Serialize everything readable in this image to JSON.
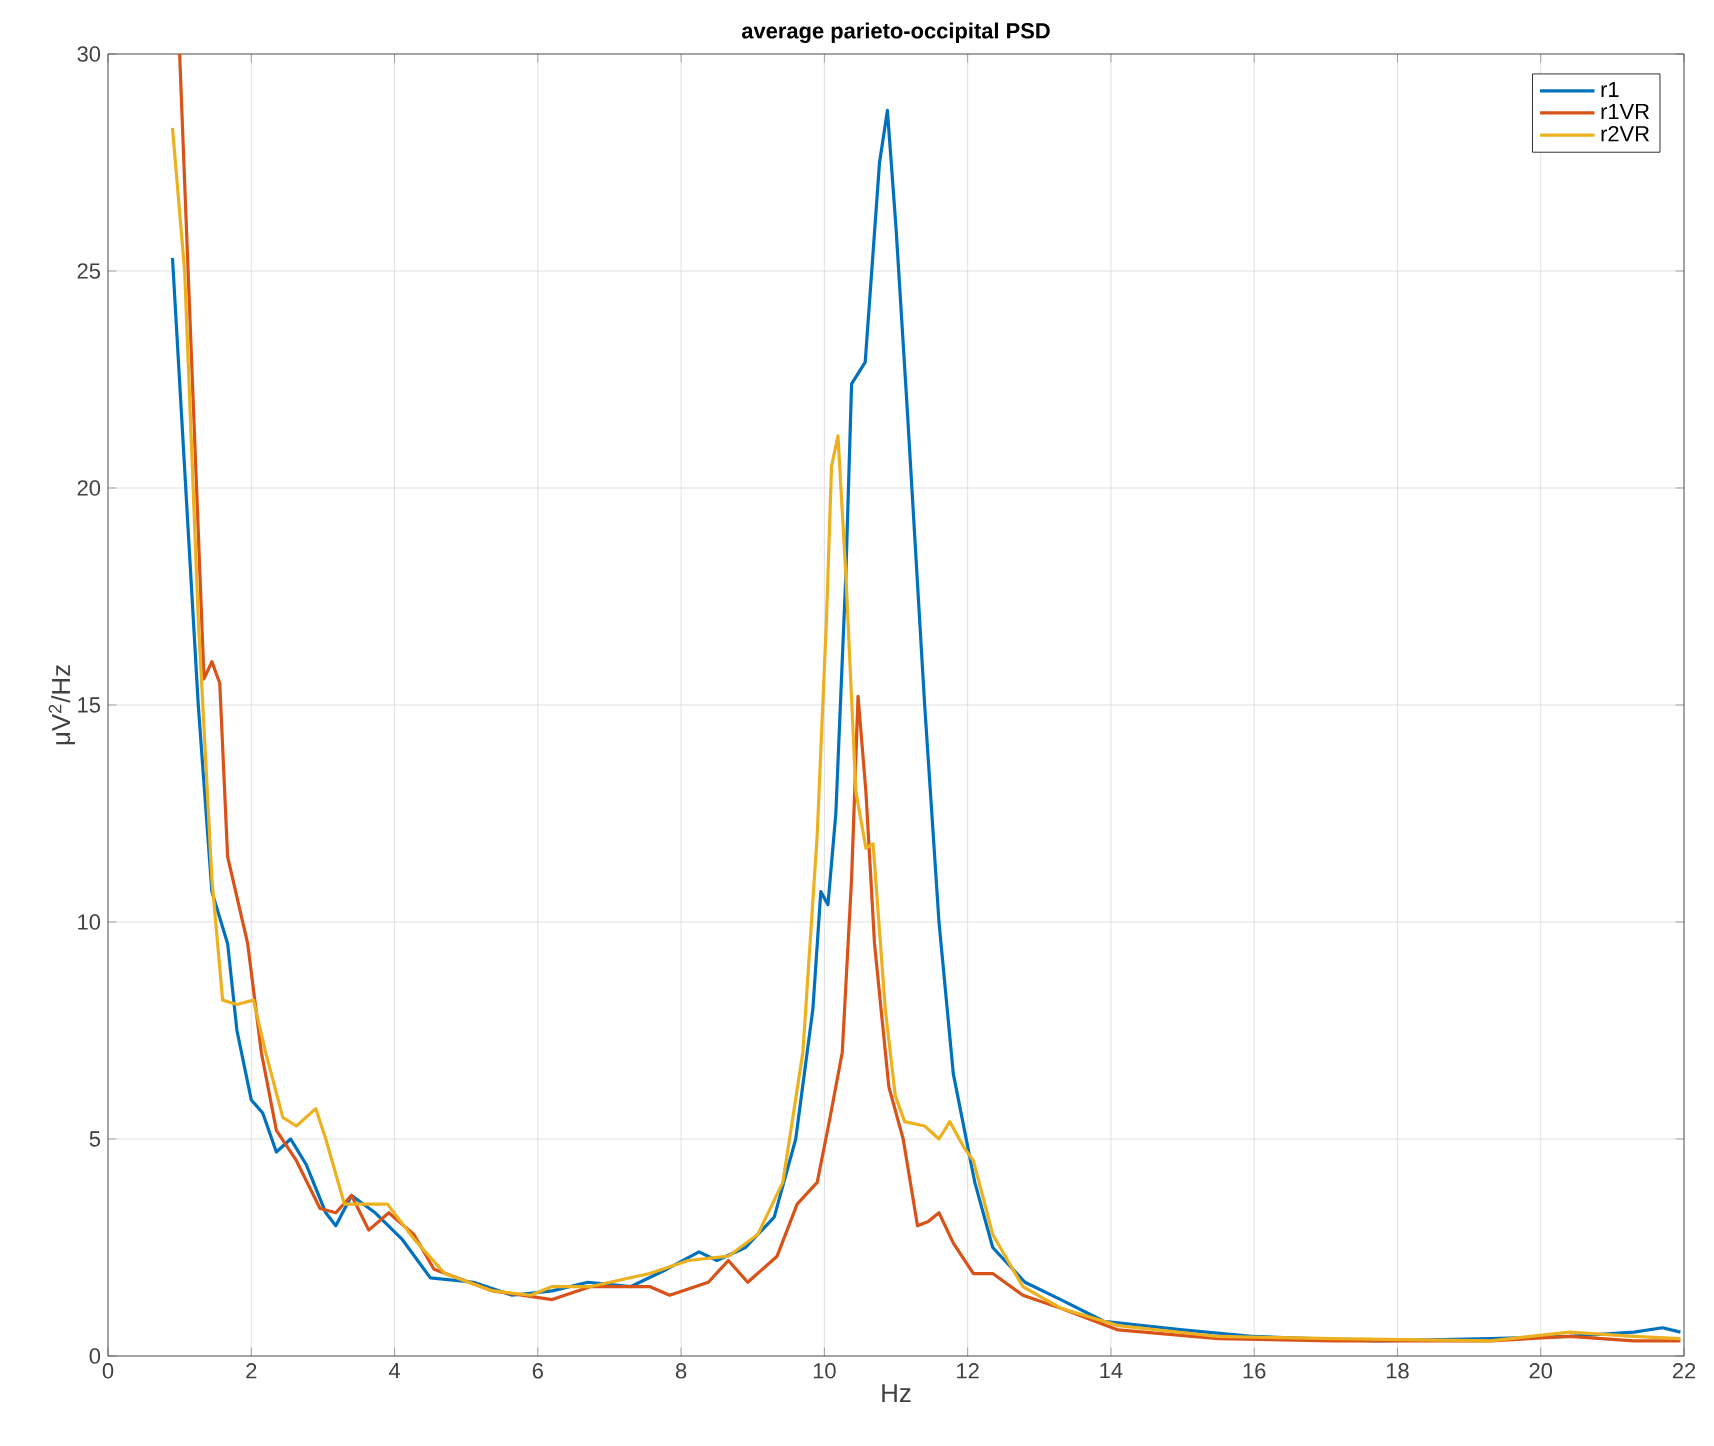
{
  "chart_data": {
    "type": "line",
    "title": "average parieto-occipital PSD",
    "xlabel": "Hz",
    "ylabel": "μV$^{2}$/Hz",
    "xlim": [
      0,
      22
    ],
    "ylim": [
      0,
      30
    ],
    "xticks": [
      0,
      2,
      4,
      6,
      8,
      10,
      12,
      14,
      16,
      18,
      20,
      22
    ],
    "yticks": [
      0,
      5,
      10,
      15,
      20,
      25,
      30
    ],
    "grid": true,
    "legend": "top right",
    "line_style": "solid",
    "marker": "none",
    "series": [
      {
        "name": "r1",
        "color": "#0072bd",
        "x": [
          0.9,
          1.26,
          1.45,
          1.67,
          1.8,
          2.0,
          2.16,
          2.35,
          2.55,
          2.77,
          3.04,
          3.18,
          3.4,
          3.73,
          4.1,
          4.5,
          5.1,
          5.64,
          6.2,
          6.7,
          7.3,
          7.8,
          8.25,
          8.5,
          8.9,
          9.3,
          9.6,
          9.84,
          9.95,
          10.05,
          10.16,
          10.3,
          10.38,
          10.57,
          10.77,
          10.88,
          11.0,
          11.15,
          11.4,
          11.6,
          11.8,
          12.1,
          12.35,
          12.8,
          13.3,
          13.9,
          15,
          16,
          17.7,
          19.3,
          20.4,
          21.3,
          21.7,
          21.95
        ],
        "values": [
          25.3,
          15,
          10.7,
          9.5,
          7.5,
          5.9,
          5.6,
          4.7,
          5.0,
          4.4,
          3.3,
          3.0,
          3.7,
          3.3,
          2.7,
          1.8,
          1.7,
          1.4,
          1.5,
          1.7,
          1.6,
          2.0,
          2.4,
          2.2,
          2.5,
          3.2,
          5.0,
          8,
          10.7,
          10.4,
          12.5,
          18,
          22.4,
          22.9,
          27.5,
          28.7,
          26,
          22,
          15,
          10,
          6.5,
          4,
          2.5,
          1.7,
          1.3,
          0.8,
          0.6,
          0.45,
          0.35,
          0.4,
          0.45,
          0.55,
          0.65,
          0.55
        ]
      },
      {
        "name": "r1VR",
        "color": "#d95319",
        "x": [
          1.0,
          1.26,
          1.34,
          1.45,
          1.56,
          1.67,
          1.95,
          2.14,
          2.35,
          2.63,
          2.96,
          3.18,
          3.4,
          3.64,
          3.92,
          4.27,
          4.55,
          5.37,
          6.2,
          6.74,
          7.56,
          7.84,
          8.38,
          8.66,
          8.93,
          9.34,
          9.62,
          9.9,
          10.08,
          10.25,
          10.38,
          10.47,
          10.58,
          10.7,
          10.9,
          11.1,
          11.3,
          11.45,
          11.6,
          11.8,
          12.08,
          12.35,
          12.77,
          13.3,
          14.1,
          15.5,
          17.1,
          19.3,
          20.4,
          21.3,
          21.95
        ],
        "values": [
          30,
          19,
          15.6,
          16,
          15.5,
          11.5,
          9.5,
          7,
          5.2,
          4.5,
          3.4,
          3.3,
          3.7,
          2.9,
          3.3,
          2.8,
          2.0,
          1.5,
          1.3,
          1.6,
          1.6,
          1.4,
          1.7,
          2.2,
          1.7,
          2.3,
          3.5,
          4.0,
          5.5,
          7,
          11,
          15.2,
          13,
          9.5,
          6.2,
          5,
          3.0,
          3.1,
          3.3,
          2.6,
          1.9,
          1.9,
          1.4,
          1.1,
          0.6,
          0.4,
          0.35,
          0.35,
          0.45,
          0.35,
          0.35
        ]
      },
      {
        "name": "r2VR",
        "color": "#edb120",
        "x": [
          0.9,
          1.07,
          1.26,
          1.45,
          1.6,
          1.8,
          2.03,
          2.2,
          2.44,
          2.63,
          2.9,
          3.04,
          3.3,
          3.6,
          3.9,
          4.27,
          4.7,
          5.37,
          5.9,
          6.2,
          6.74,
          7.56,
          8.1,
          8.66,
          9.07,
          9.42,
          9.7,
          9.9,
          10.03,
          10.1,
          10.19,
          10.3,
          10.44,
          10.58,
          10.68,
          10.85,
          10.99,
          11.12,
          11.4,
          11.6,
          11.75,
          11.95,
          12.08,
          12.35,
          12.77,
          13.3,
          14.1,
          15.5,
          17.1,
          19.3,
          20.4,
          21.3,
          21.95
        ],
        "values": [
          28.3,
          25,
          17,
          11,
          8.2,
          8.1,
          8.2,
          7.0,
          5.5,
          5.3,
          5.7,
          5.0,
          3.5,
          3.5,
          3.5,
          2.7,
          1.9,
          1.5,
          1.4,
          1.6,
          1.6,
          1.9,
          2.2,
          2.3,
          2.8,
          4,
          7,
          12,
          17,
          20.5,
          21.2,
          18,
          13,
          11.7,
          11.8,
          8,
          6,
          5.4,
          5.3,
          5.0,
          5.4,
          4.8,
          4.5,
          2.8,
          1.6,
          1.1,
          0.7,
          0.45,
          0.4,
          0.35,
          0.55,
          0.45,
          0.4
        ]
      }
    ]
  }
}
